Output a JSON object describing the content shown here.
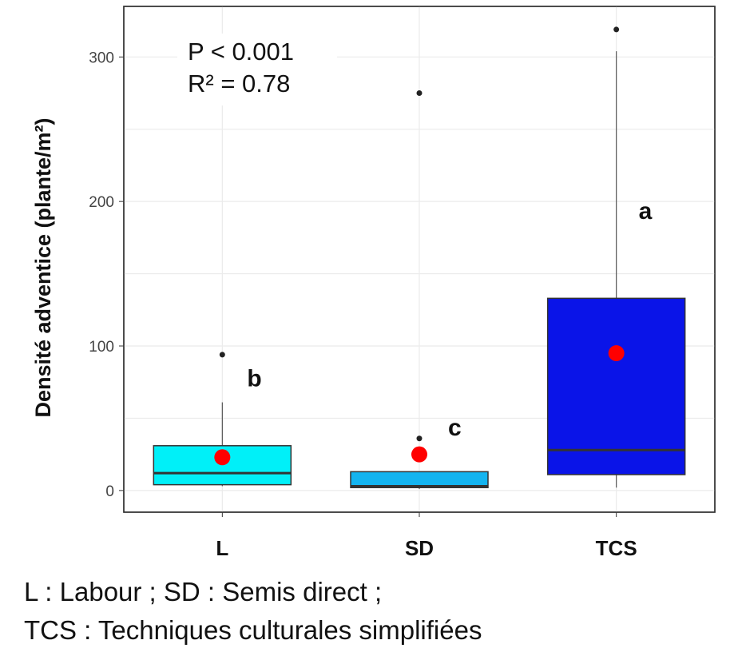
{
  "chart_data": {
    "type": "box",
    "ylabel": "Densité adventice (plante/m²)",
    "ylim": [
      -15,
      335
    ],
    "yticks": [
      0,
      100,
      200,
      300
    ],
    "grid": true,
    "annotations": [
      "P < 0.001",
      "R² = 0.78"
    ],
    "categories": [
      "L",
      "SD",
      "TCS"
    ],
    "groups": [
      {
        "category": "L",
        "color": "#00f0f8",
        "lower_whisker": 3,
        "q1": 4,
        "median": 12,
        "q3": 31,
        "upper_whisker": 61,
        "mean": 23,
        "outliers": [
          94
        ],
        "letter": "b"
      },
      {
        "category": "SD",
        "color": "#14b4f0",
        "lower_whisker": 1,
        "q1": 2,
        "median": 3,
        "q3": 13,
        "upper_whisker": 13,
        "mean": 25,
        "outliers": [
          36,
          275
        ],
        "letter": "c"
      },
      {
        "category": "TCS",
        "color": "#0a14e8",
        "lower_whisker": 2,
        "q1": 11,
        "median": 28,
        "q3": 133,
        "upper_whisker": 304,
        "mean": 95,
        "outliers": [
          319
        ],
        "letter": "a"
      }
    ]
  },
  "legend_lines": [
    "L : Labour ; SD : Semis direct ;",
    "TCS : Techniques culturales simplifiées"
  ]
}
